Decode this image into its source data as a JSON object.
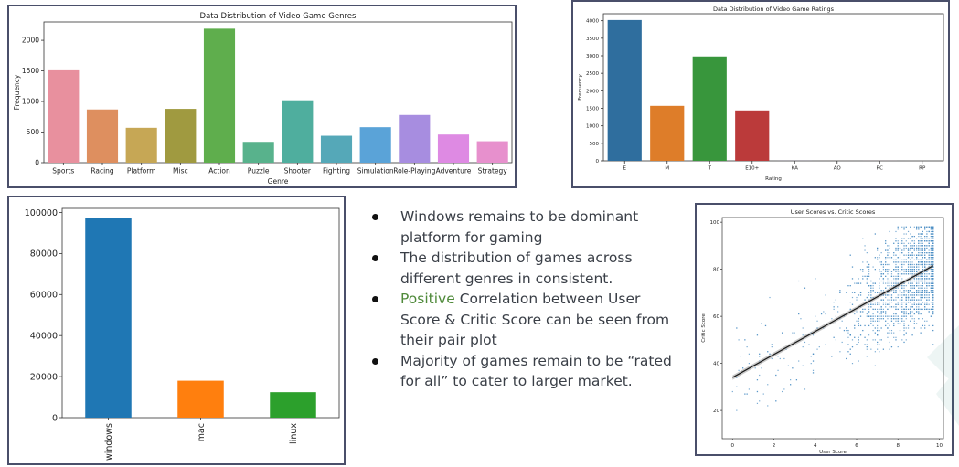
{
  "chart_data": [
    {
      "id": "genres",
      "type": "bar",
      "title": "Data Distribution of Video Game Genres",
      "xlabel": "Genre",
      "ylabel": "Frequency",
      "categories": [
        "Sports",
        "Racing",
        "Platform",
        "Misc",
        "Action",
        "Puzzle",
        "Shooter",
        "Fighting",
        "Simulation",
        "Role-Playing",
        "Adventure",
        "Strategy"
      ],
      "values": [
        1510,
        870,
        570,
        880,
        2190,
        340,
        1020,
        440,
        580,
        780,
        460,
        350
      ],
      "colors": [
        "#e8909e",
        "#de8f5f",
        "#c6a755",
        "#a09a40",
        "#5fae4d",
        "#58b28c",
        "#4fae9e",
        "#55a8b8",
        "#5aa3d8",
        "#a78de0",
        "#de8ae3",
        "#e790cd"
      ],
      "ylim": [
        0,
        2300
      ],
      "yticks": [
        0,
        500,
        1000,
        1500,
        2000
      ]
    },
    {
      "id": "ratings",
      "type": "bar",
      "title": "Data Distribution of Video Game Ratings",
      "xlabel": "Rating",
      "ylabel": "Frequency",
      "categories": [
        "E",
        "M",
        "T",
        "E10+",
        "KA",
        "AO",
        "RC",
        "RP"
      ],
      "values": [
        4020,
        1570,
        2980,
        1440,
        2,
        1,
        1,
        1
      ],
      "colors": [
        "#2f6e9e",
        "#de7d29",
        "#38963c",
        "#bb3a3a",
        "#7b5ea6",
        "#7d574c",
        "#d17fbd",
        "#808080"
      ],
      "ylim": [
        0,
        4200
      ],
      "yticks": [
        0,
        500,
        1000,
        1500,
        2000,
        2500,
        3000,
        3500,
        4000
      ]
    },
    {
      "id": "platforms",
      "type": "bar",
      "categories": [
        "windows",
        "mac",
        "linux"
      ],
      "values": [
        97500,
        18000,
        12400
      ],
      "colors": [
        "#1f77b4",
        "#ff7f0e",
        "#2ca02c"
      ],
      "ylim": [
        0,
        102000
      ],
      "yticks": [
        0,
        20000,
        40000,
        60000,
        80000,
        100000
      ]
    },
    {
      "id": "scores",
      "type": "scatter",
      "title": "User Scores vs. Critic Scores",
      "xlabel": "User Score",
      "ylabel": "Critic Score",
      "xlim": [
        -0.5,
        10.2
      ],
      "ylim": [
        8,
        102
      ],
      "xticks": [
        0,
        2,
        4,
        6,
        8,
        10
      ],
      "yticks": [
        20,
        40,
        60,
        80,
        100
      ],
      "regression": {
        "x": [
          0,
          9.7
        ],
        "y": [
          34,
          81.5
        ]
      },
      "point_color": "#4c8fc4",
      "line_color": "#1a1a1a"
    }
  ],
  "bullets": {
    "b1": "Windows remains to be dominant platform for gaming",
    "b2": "The distribution of games across different genres in consistent.",
    "b3_highlight": "Positive",
    "b3_rest": " Correlation between User Score & Critic Score can be seen from their pair plot",
    "b4": "Majority of games remain to be “rated for all” to cater to larger market."
  }
}
